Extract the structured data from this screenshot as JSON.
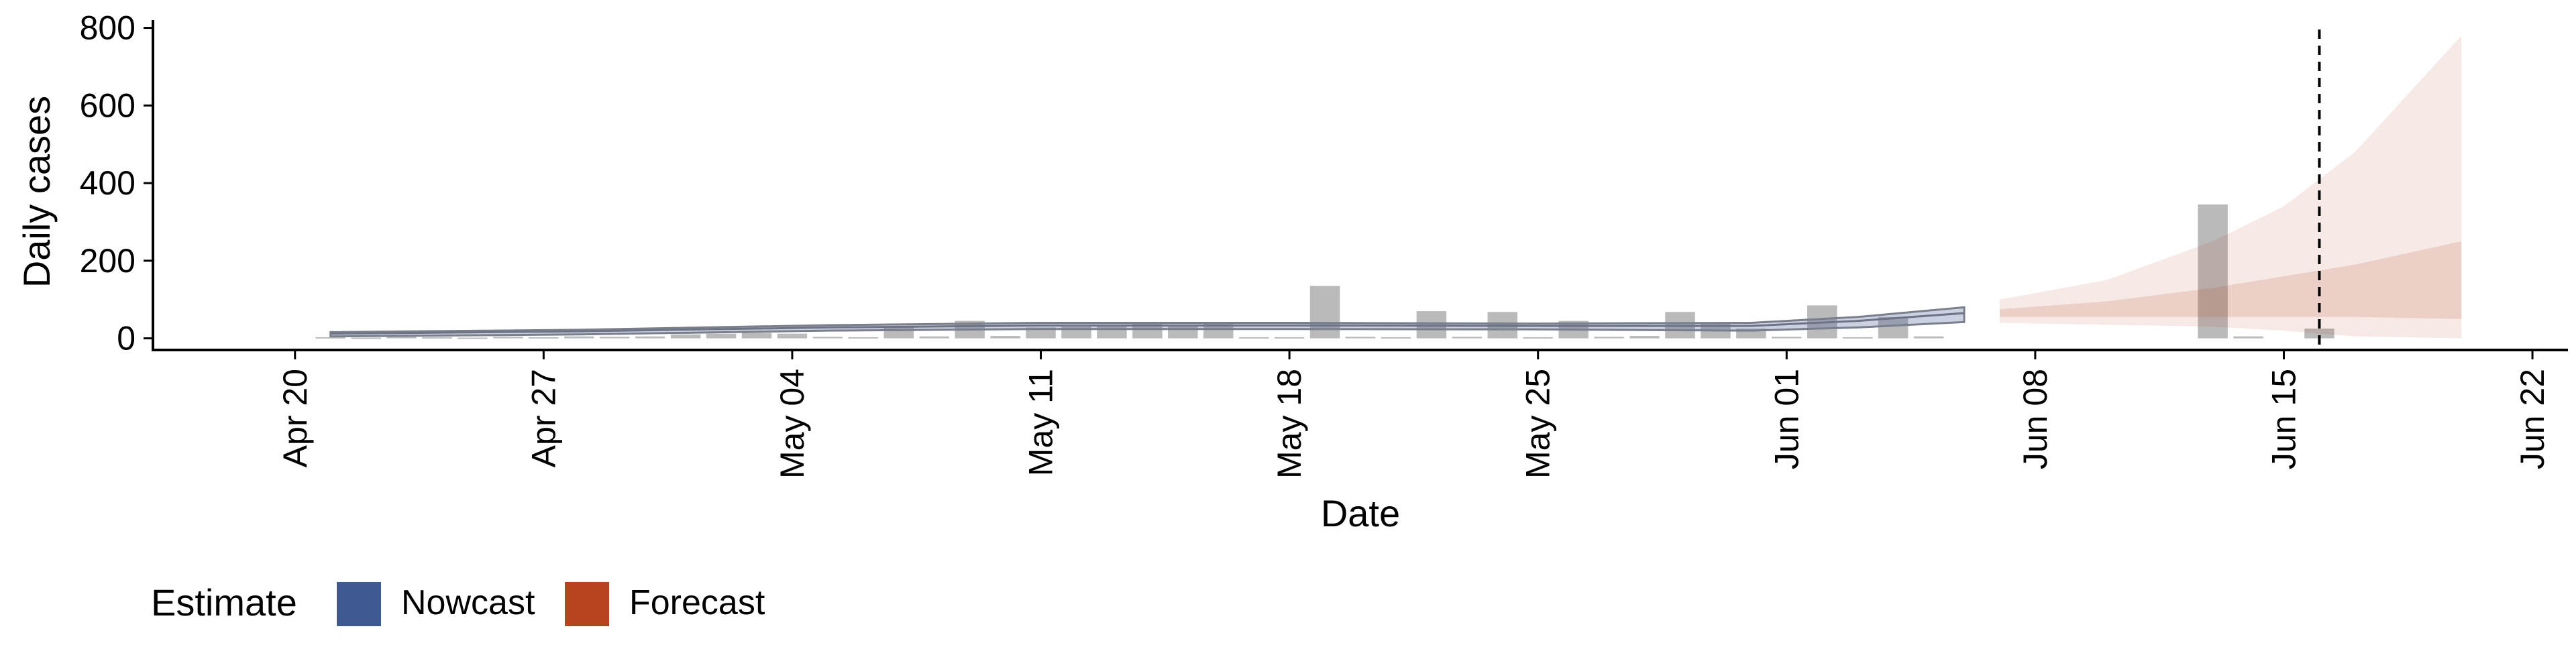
{
  "chart_data": {
    "type": "bar",
    "title": "",
    "xlabel": "Date",
    "ylabel": "Daily cases",
    "ylim": [
      -30,
      820
    ],
    "yticks": [
      0,
      200,
      400,
      600,
      800
    ],
    "xlim": [
      "2020-04-16",
      "2020-06-23"
    ],
    "xticks": [
      {
        "date": "2020-04-20",
        "label": "Apr 20"
      },
      {
        "date": "2020-04-27",
        "label": "Apr 27"
      },
      {
        "date": "2020-05-04",
        "label": "May 04"
      },
      {
        "date": "2020-05-11",
        "label": "May 11"
      },
      {
        "date": "2020-05-18",
        "label": "May 18"
      },
      {
        "date": "2020-05-25",
        "label": "May 25"
      },
      {
        "date": "2020-06-01",
        "label": "Jun 01"
      },
      {
        "date": "2020-06-08",
        "label": "Jun 08"
      },
      {
        "date": "2020-06-15",
        "label": "Jun 15"
      },
      {
        "date": "2020-06-22",
        "label": "Jun 22"
      }
    ],
    "grid": false,
    "legend_position": "bottom-left",
    "legend_title": "Estimate",
    "reference_line": {
      "date": "2020-06-16",
      "style": "dashed"
    },
    "series": [
      {
        "name": "Nowcast",
        "color": "#3F5A93"
      },
      {
        "name": "Forecast",
        "color": "#B5441F"
      }
    ],
    "observed_cases": [
      {
        "date": "2020-04-21",
        "value": 3
      },
      {
        "date": "2020-04-22",
        "value": 2
      },
      {
        "date": "2020-04-23",
        "value": 4
      },
      {
        "date": "2020-04-24",
        "value": 3
      },
      {
        "date": "2020-04-25",
        "value": 2
      },
      {
        "date": "2020-04-26",
        "value": 4
      },
      {
        "date": "2020-04-27",
        "value": 3
      },
      {
        "date": "2020-04-28",
        "value": 5
      },
      {
        "date": "2020-04-29",
        "value": 4
      },
      {
        "date": "2020-04-30",
        "value": 5
      },
      {
        "date": "2020-05-01",
        "value": 10
      },
      {
        "date": "2020-05-02",
        "value": 12
      },
      {
        "date": "2020-05-03",
        "value": 14
      },
      {
        "date": "2020-05-04",
        "value": 12
      },
      {
        "date": "2020-05-05",
        "value": 4
      },
      {
        "date": "2020-05-06",
        "value": 3
      },
      {
        "date": "2020-05-07",
        "value": 28
      },
      {
        "date": "2020-05-08",
        "value": 5
      },
      {
        "date": "2020-05-09",
        "value": 45
      },
      {
        "date": "2020-05-10",
        "value": 6
      },
      {
        "date": "2020-05-11",
        "value": 28
      },
      {
        "date": "2020-05-12",
        "value": 30
      },
      {
        "date": "2020-05-13",
        "value": 32
      },
      {
        "date": "2020-05-14",
        "value": 40
      },
      {
        "date": "2020-05-15",
        "value": 35
      },
      {
        "date": "2020-05-16",
        "value": 42
      },
      {
        "date": "2020-05-17",
        "value": 3
      },
      {
        "date": "2020-05-18",
        "value": 3
      },
      {
        "date": "2020-05-19",
        "value": 135
      },
      {
        "date": "2020-05-20",
        "value": 4
      },
      {
        "date": "2020-05-21",
        "value": 3
      },
      {
        "date": "2020-05-22",
        "value": 70
      },
      {
        "date": "2020-05-23",
        "value": 4
      },
      {
        "date": "2020-05-24",
        "value": 68
      },
      {
        "date": "2020-05-25",
        "value": 3
      },
      {
        "date": "2020-05-26",
        "value": 45
      },
      {
        "date": "2020-05-27",
        "value": 4
      },
      {
        "date": "2020-05-28",
        "value": 6
      },
      {
        "date": "2020-05-29",
        "value": 68
      },
      {
        "date": "2020-05-30",
        "value": 40
      },
      {
        "date": "2020-05-31",
        "value": 25
      },
      {
        "date": "2020-06-01",
        "value": 4
      },
      {
        "date": "2020-06-02",
        "value": 85
      },
      {
        "date": "2020-06-03",
        "value": 3
      },
      {
        "date": "2020-06-04",
        "value": 55
      },
      {
        "date": "2020-06-05",
        "value": 5
      },
      {
        "date": "2020-06-13",
        "value": 345
      },
      {
        "date": "2020-06-14",
        "value": 5
      },
      {
        "date": "2020-06-16",
        "value": 25
      }
    ],
    "nowcast": [
      {
        "date": "2020-04-21",
        "median": 12,
        "lower": 5,
        "upper": 16
      },
      {
        "date": "2020-04-28",
        "median": 18,
        "lower": 10,
        "upper": 22
      },
      {
        "date": "2020-05-05",
        "median": 28,
        "lower": 20,
        "upper": 34
      },
      {
        "date": "2020-05-11",
        "median": 33,
        "lower": 24,
        "upper": 40
      },
      {
        "date": "2020-05-18",
        "median": 33,
        "lower": 24,
        "upper": 40
      },
      {
        "date": "2020-05-25",
        "median": 32,
        "lower": 23,
        "upper": 38
      },
      {
        "date": "2020-05-31",
        "median": 32,
        "lower": 20,
        "upper": 40
      },
      {
        "date": "2020-06-03",
        "median": 45,
        "lower": 28,
        "upper": 55
      },
      {
        "date": "2020-06-06",
        "median": 65,
        "lower": 42,
        "upper": 80
      }
    ],
    "forecast": [
      {
        "date": "2020-06-07",
        "lower90": 40,
        "upper90": 100,
        "lower50": 55,
        "upper50": 75
      },
      {
        "date": "2020-06-10",
        "lower90": 35,
        "upper90": 150,
        "lower50": 55,
        "upper50": 95
      },
      {
        "date": "2020-06-13",
        "lower90": 30,
        "upper90": 250,
        "lower50": 55,
        "upper50": 130
      },
      {
        "date": "2020-06-15",
        "lower90": 20,
        "upper90": 340,
        "lower50": 55,
        "upper50": 160
      },
      {
        "date": "2020-06-17",
        "lower90": 5,
        "upper90": 480,
        "lower50": 55,
        "upper50": 190
      },
      {
        "date": "2020-06-20",
        "lower90": 0,
        "upper90": 780,
        "lower50": 50,
        "upper50": 250
      }
    ]
  }
}
